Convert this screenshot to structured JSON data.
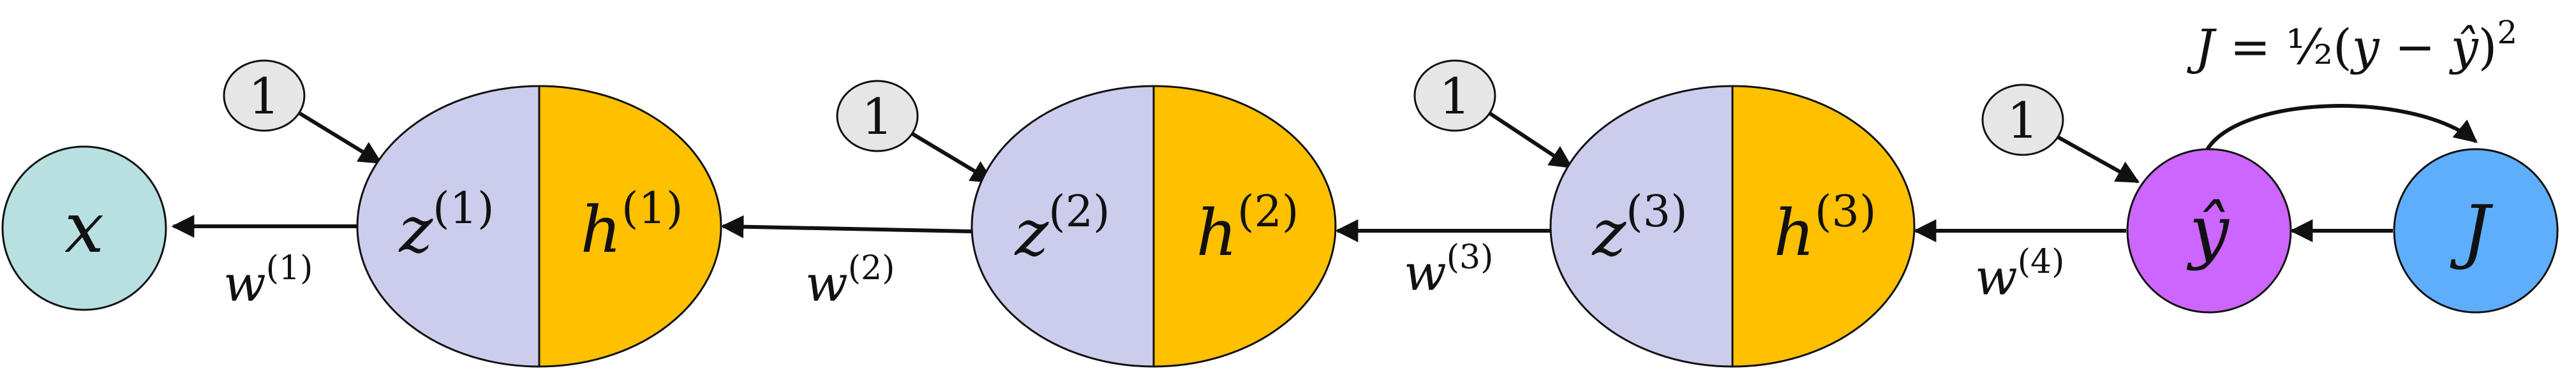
{
  "colors": {
    "x_node": "#b8e0e0",
    "z_half": "#ccccec",
    "h_half": "#ffc000",
    "yhat_node": "#cc66ff",
    "J_node": "#5eaefc",
    "bias_node": "#e6e6e6",
    "y_term": "#1f8bff",
    "yhat_term": "#cc66ff"
  },
  "nodes": {
    "x": "x",
    "layer1": {
      "z_base": "z",
      "z_sup": "(1)",
      "h_base": "h",
      "h_sup": "(1)",
      "bias": "1"
    },
    "layer2": {
      "z_base": "z",
      "z_sup": "(2)",
      "h_base": "h",
      "h_sup": "(2)",
      "bias": "1"
    },
    "layer3": {
      "z_base": "z",
      "z_sup": "(3)",
      "h_base": "h",
      "h_sup": "(3)",
      "bias": "1"
    },
    "yhat": {
      "label": "ŷ",
      "bias": "1"
    },
    "J": "J"
  },
  "weights": [
    {
      "base": "w",
      "sup": "(1)"
    },
    {
      "base": "w",
      "sup": "(2)"
    },
    {
      "base": "w",
      "sup": "(3)"
    },
    {
      "base": "w",
      "sup": "(4)"
    }
  ],
  "formula": {
    "lhs": "J",
    "eq": " = ½(",
    "y": "y",
    "minus": " − ",
    "yhat": "ŷ",
    "close": ")",
    "power": "2"
  }
}
